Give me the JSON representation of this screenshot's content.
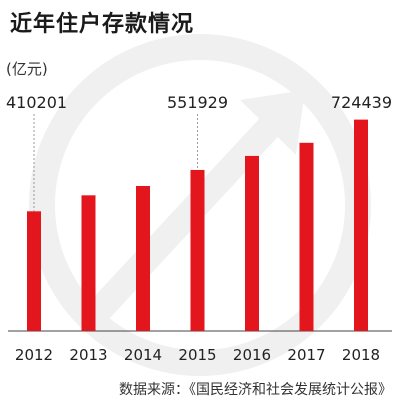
{
  "title": "近年住户存款情况",
  "unit": "(亿元)",
  "source": "数据来源：《国民经济和社会发展统计公报》",
  "colors": {
    "bar": "#e3151d",
    "text": "#222222",
    "watermark": "#f0f0f0"
  },
  "chart_data": {
    "type": "bar",
    "title": "近年住户存款情况",
    "ylabel": "(亿元)",
    "xlabel": "",
    "categories": [
      "2012",
      "2013",
      "2014",
      "2015",
      "2016",
      "2017",
      "2018"
    ],
    "values": [
      410201,
      465000,
      497000,
      551929,
      600000,
      645000,
      724439
    ],
    "data_labels": [
      {
        "category": "2012",
        "text": "410201"
      },
      {
        "category": "2015",
        "text": "551929"
      },
      {
        "category": "2018",
        "text": "724439"
      }
    ],
    "ylim": [
      0,
      800000
    ],
    "grid": false,
    "legend": "none"
  }
}
